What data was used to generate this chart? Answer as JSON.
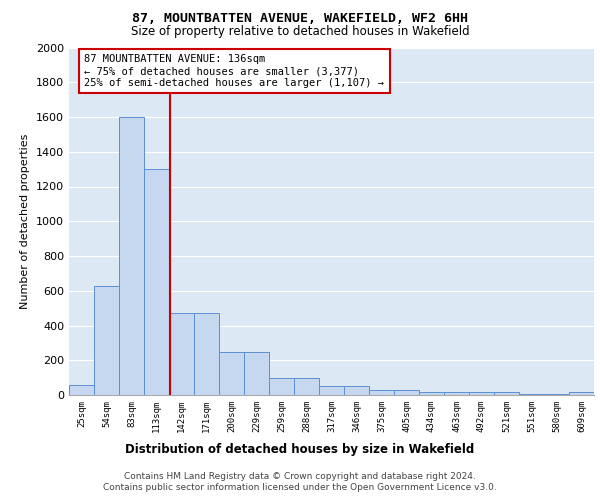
{
  "title1": "87, MOUNTBATTEN AVENUE, WAKEFIELD, WF2 6HH",
  "title2": "Size of property relative to detached houses in Wakefield",
  "xlabel": "Distribution of detached houses by size in Wakefield",
  "ylabel": "Number of detached properties",
  "categories": [
    "25sqm",
    "54sqm",
    "83sqm",
    "113sqm",
    "142sqm",
    "171sqm",
    "200sqm",
    "229sqm",
    "259sqm",
    "288sqm",
    "317sqm",
    "346sqm",
    "375sqm",
    "405sqm",
    "434sqm",
    "463sqm",
    "492sqm",
    "521sqm",
    "551sqm",
    "580sqm",
    "609sqm"
  ],
  "values": [
    60,
    630,
    1600,
    1300,
    470,
    470,
    245,
    245,
    100,
    100,
    50,
    50,
    30,
    30,
    20,
    20,
    18,
    18,
    5,
    5,
    18
  ],
  "bar_color": "#c5d8f0",
  "bar_edge_color": "#5b8fd4",
  "bg_color": "#dde8f5",
  "grid_color": "#ffffff",
  "annotation_line1": "87 MOUNTBATTEN AVENUE: 136sqm",
  "annotation_line2": "← 75% of detached houses are smaller (3,377)",
  "annotation_line3": "25% of semi-detached houses are larger (1,107) →",
  "vline_x_index": 3.52,
  "vline_color": "#cc0000",
  "annotation_box_color": "#ffffff",
  "annotation_box_edge": "#cc0000",
  "ylim": [
    0,
    2000
  ],
  "yticks": [
    0,
    200,
    400,
    600,
    800,
    1000,
    1200,
    1400,
    1600,
    1800,
    2000
  ],
  "footer_line1": "Contains HM Land Registry data © Crown copyright and database right 2024.",
  "footer_line2": "Contains public sector information licensed under the Open Government Licence v3.0."
}
